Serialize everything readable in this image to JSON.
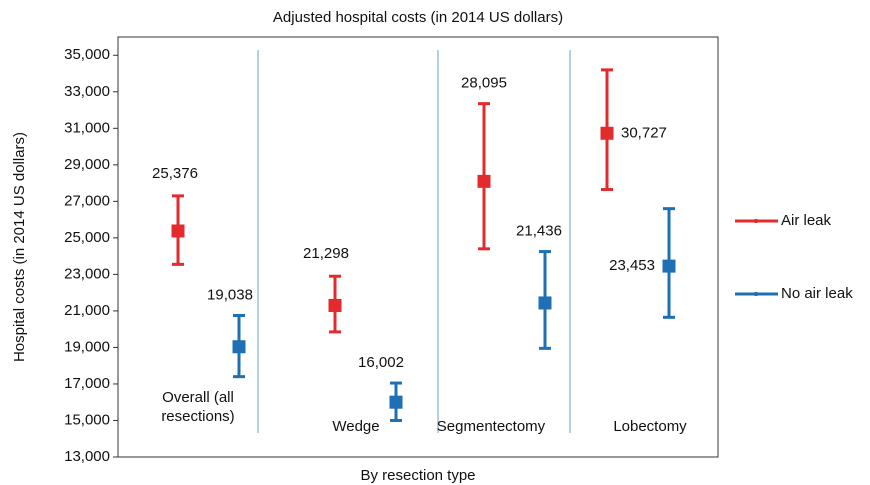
{
  "chart_data": {
    "type": "errorbar",
    "title": "Adjusted hospital costs (in 2014 US dollars)",
    "x_label": "By resection type",
    "y_label": "Hospital costs (in 2014 US dollars)",
    "categories": [
      "Overall (all resections)",
      "Wedge",
      "Segmentectomy",
      "Lobectomy"
    ],
    "series": [
      {
        "name": "Air leak",
        "color": "#e32b2e",
        "values": [
          25376,
          21298,
          28095,
          30727
        ],
        "value_labels": [
          "25,376",
          "21,298",
          "28,095",
          "30,727"
        ],
        "lower": [
          23550,
          19850,
          24400,
          27650
        ],
        "upper": [
          27300,
          22900,
          32350,
          34200
        ]
      },
      {
        "name": "No air leak",
        "color": "#1f6fb5",
        "values": [
          19038,
          16002,
          21436,
          23453
        ],
        "value_labels": [
          "19,038",
          "16,002",
          "21,436",
          "23,453"
        ],
        "lower": [
          17400,
          15000,
          18950,
          20650
        ],
        "upper": [
          20750,
          17050,
          24250,
          26600
        ]
      }
    ],
    "ylim": [
      13000,
      36000
    ],
    "yticks": [
      {
        "value": 13000,
        "label": "13,000"
      },
      {
        "value": 15000,
        "label": "15,000"
      },
      {
        "value": 17000,
        "label": "17,000"
      },
      {
        "value": 19000,
        "label": "19,000"
      },
      {
        "value": 21000,
        "label": "21,000"
      },
      {
        "value": 23000,
        "label": "23,000"
      },
      {
        "value": 25000,
        "label": "25,000"
      },
      {
        "value": 27000,
        "label": "27,000"
      },
      {
        "value": 29000,
        "label": "29,000"
      },
      {
        "value": 31000,
        "label": "31,000"
      },
      {
        "value": 33000,
        "label": "33,000"
      },
      {
        "value": 35000,
        "label": "35,000"
      }
    ],
    "legend": "right"
  }
}
